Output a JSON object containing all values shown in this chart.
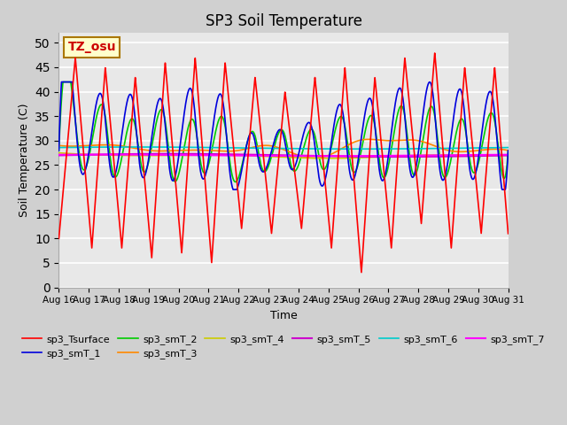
{
  "title": "SP3 Soil Temperature",
  "ylabel": "Soil Temperature (C)",
  "xlabel": "Time",
  "ylim": [
    0,
    52
  ],
  "yticks": [
    0,
    5,
    10,
    15,
    20,
    25,
    30,
    35,
    40,
    45,
    50
  ],
  "fig_bg": "#d0d0d0",
  "plot_bg": "#e8e8e8",
  "tz_label": "TZ_osu",
  "tz_color": "#cc0000",
  "tz_bg": "#ffffcc",
  "tz_border": "#aa7700",
  "series_order": [
    "sp3_Tsurface",
    "sp3_smT_1",
    "sp3_smT_2",
    "sp3_smT_3",
    "sp3_smT_4",
    "sp3_smT_5",
    "sp3_smT_6",
    "sp3_smT_7"
  ],
  "series_colors": [
    "#ff0000",
    "#0000dd",
    "#00cc00",
    "#ff8800",
    "#cccc00",
    "#cc00cc",
    "#00cccc",
    "#ff00ff"
  ],
  "series_lw": [
    1.2,
    1.2,
    1.2,
    1.2,
    1.2,
    1.5,
    1.2,
    1.5
  ],
  "legend_labels": [
    "sp3_Tsurface",
    "sp3_smT_1",
    "sp3_smT_2",
    "sp3_smT_3",
    "sp3_smT_4",
    "sp3_smT_5",
    "sp3_smT_6",
    "sp3_smT_7"
  ],
  "xtick_labels": [
    "Aug 16",
    "Aug 17",
    "Aug 18",
    "Aug 19",
    "Aug 20",
    "Aug 21",
    "Aug 22",
    "Aug 23",
    "Aug 24",
    "Aug 25",
    "Aug 26",
    "Aug 27",
    "Aug 28",
    "Aug 29",
    "Aug 30",
    "Aug 31"
  ],
  "peak_days": [
    0.55,
    1.55,
    2.55,
    3.55,
    4.55,
    5.55,
    6.55,
    7.55,
    8.55,
    9.55,
    10.55,
    11.55,
    12.55,
    13.55,
    14.55
  ],
  "peak_values": [
    47,
    45,
    43,
    46,
    47,
    46,
    43,
    40,
    43,
    45,
    43,
    47,
    48,
    45,
    45
  ],
  "trough_days": [
    1.1,
    2.1,
    3.1,
    4.1,
    5.1,
    6.1,
    7.1,
    8.1,
    9.1,
    10.1,
    11.1,
    12.1,
    13.1,
    14.1,
    15.0
  ],
  "trough_values": [
    8,
    8,
    6,
    7,
    5,
    12,
    11,
    12,
    8,
    3,
    8,
    13,
    8,
    11,
    11
  ]
}
